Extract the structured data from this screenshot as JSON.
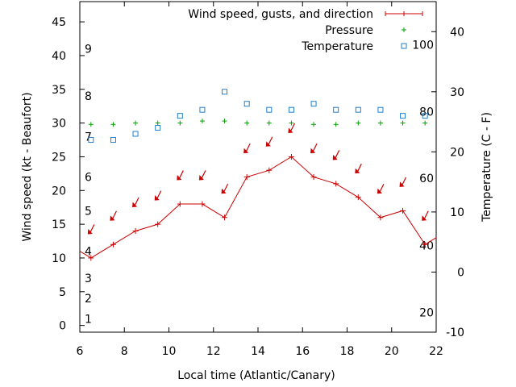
{
  "chart_data": {
    "type": "line",
    "xlabel": "Local time (Atlantic/Canary)",
    "ylabel": "Wind speed (kt - Beaufort)",
    "y2label": "Temperature (C - F)",
    "xlim": [
      6,
      22
    ],
    "ylim": [
      -1,
      48
    ],
    "y2lim": [
      -10,
      45
    ],
    "x_ticks": [
      "6",
      "8",
      "10",
      "12",
      "14",
      "16",
      "18",
      "20",
      "22"
    ],
    "y_ticks": [
      "0",
      "5",
      "10",
      "15",
      "20",
      "25",
      "30",
      "35",
      "40",
      "45"
    ],
    "y2_ticks": [
      "-10",
      "0",
      "10",
      "20",
      "30",
      "40"
    ],
    "beaufort_labels": [
      {
        "text": "1",
        "y": 1
      },
      {
        "text": "2",
        "y": 4
      },
      {
        "text": "3",
        "y": 7
      },
      {
        "text": "4",
        "y": 11
      },
      {
        "text": "5",
        "y": 17
      },
      {
        "text": "6",
        "y": 22
      },
      {
        "text": "7",
        "y": 28
      },
      {
        "text": "8",
        "y": 34
      },
      {
        "text": "9",
        "y": 41
      }
    ],
    "fahrenheit_labels": [
      {
        "text": "20",
        "y": -6.7
      },
      {
        "text": "40",
        "y": 4.4
      },
      {
        "text": "60",
        "y": 15.6
      },
      {
        "text": "80",
        "y": 26.7
      },
      {
        "text": "100",
        "y": 37.8
      }
    ],
    "legend": {
      "position": "top-right",
      "entries": [
        "Wind speed, gusts, and direction",
        "Pressure",
        "Temperature"
      ]
    },
    "colors": {
      "wind": "#cc0000",
      "pressure": "#00a000",
      "temperature": "#1f7fcf"
    },
    "series": [
      {
        "name": "Wind speed, gusts, and direction",
        "axis": "left",
        "x": [
          6,
          6.5,
          7.5,
          8.5,
          9.5,
          10.5,
          11.5,
          12.5,
          13.5,
          14.5,
          15.5,
          16.5,
          17.5,
          18.5,
          19.5,
          20.5,
          21.5,
          22
        ],
        "values": [
          11,
          10,
          12,
          14,
          15,
          18,
          18,
          16,
          22,
          23,
          25,
          22,
          21,
          19,
          16,
          17,
          12,
          13
        ]
      },
      {
        "name": "Pressure",
        "axis": "left",
        "x": [
          6.5,
          7.5,
          8.5,
          9.5,
          10.5,
          11.5,
          12.5,
          13.5,
          14.5,
          15.5,
          16.5,
          17.5,
          18.5,
          19.5,
          20.5,
          21.5
        ],
        "values": [
          29.8,
          29.8,
          30.0,
          30.0,
          30.0,
          30.3,
          30.3,
          30.0,
          30.0,
          30.0,
          29.8,
          29.8,
          30.0,
          30.0,
          30.0,
          30.0
        ]
      },
      {
        "name": "Temperature",
        "axis": "right",
        "x": [
          6.5,
          7.5,
          8.5,
          9.5,
          10.5,
          11.5,
          12.5,
          13.5,
          14.5,
          15.5,
          16.5,
          17.5,
          18.5,
          19.5,
          20.5,
          21.5
        ],
        "values": [
          22,
          22,
          23,
          24,
          26,
          27,
          30,
          28,
          27,
          27,
          28,
          27,
          27,
          27,
          26,
          26
        ]
      }
    ],
    "wind_direction_arrows": {
      "x": [
        6.5,
        7.5,
        8.5,
        9.5,
        10.5,
        11.5,
        12.5,
        13.5,
        14.5,
        15.5,
        16.5,
        17.5,
        18.5,
        19.5,
        20.5,
        21.5
      ],
      "y": [
        14,
        16,
        18,
        19,
        22,
        22,
        20,
        26,
        27,
        29,
        26,
        25,
        23,
        20,
        21,
        16
      ]
    }
  }
}
